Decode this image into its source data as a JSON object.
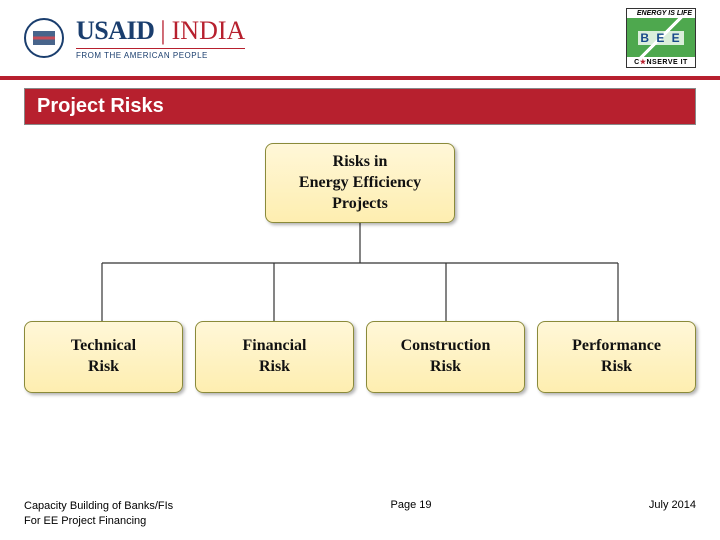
{
  "header": {
    "usaid_text": "USAID",
    "usaid_pipe": "|",
    "usaid_country": "INDIA",
    "usaid_tagline": "FROM THE AMERICAN PEOPLE",
    "bee_top": "ENERGY IS LIFE",
    "bee_letters": "B E E",
    "bee_bottom_pre": "C",
    "bee_bottom_star": "★",
    "bee_bottom_post": "NSERVE IT"
  },
  "title": "Project Risks",
  "diagram": {
    "root": "Risks in\nEnergy Efficiency\nProjects",
    "children": [
      "Technical\nRisk",
      "Financial\nRisk",
      "Construction\nRisk",
      "Performance\nRisk"
    ],
    "box_fill_top": "#fff7d8",
    "box_fill_bottom": "#feeeb0",
    "box_border": "#8a8a3a",
    "line_color": "#333333",
    "font": "Georgia",
    "fontsize": 16
  },
  "footer": {
    "left_line1": "Capacity Building of Banks/FIs",
    "left_line2": "For EE Project Financing",
    "center": "Page 19",
    "right": "July 2014"
  },
  "colors": {
    "brand_red": "#b7202e",
    "brand_navy": "#1a3e6e",
    "background": "#ffffff"
  }
}
